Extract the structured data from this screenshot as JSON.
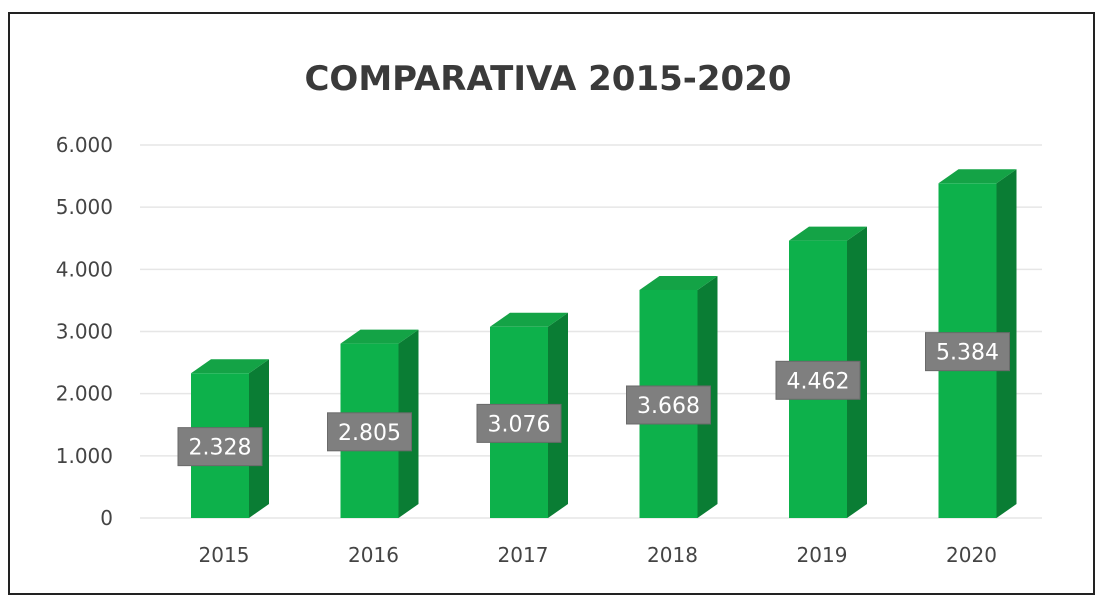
{
  "chart_data": {
    "type": "bar",
    "title": "COMPARATIVA 2015-2020",
    "categories": [
      "2015",
      "2016",
      "2017",
      "2018",
      "2019",
      "2020"
    ],
    "values": [
      2328,
      2805,
      3076,
      3668,
      4462,
      5384
    ],
    "data_labels": [
      "2.328",
      "2.805",
      "3.076",
      "3.668",
      "4.462",
      "5.384"
    ],
    "y_ticks": [
      0,
      1000,
      2000,
      3000,
      4000,
      5000,
      6000
    ],
    "y_tick_labels": [
      "0",
      "1.000",
      "2.000",
      "3.000",
      "4.000",
      "5.000",
      "6.000"
    ],
    "ylim": [
      0,
      6000
    ],
    "xlabel": "",
    "ylabel": "",
    "grid": true,
    "legend": "none",
    "style": "3d-column",
    "colors": {
      "bar_front": "#0db14b",
      "bar_side": "#0a7d34",
      "bar_top": "#14a346",
      "label_bg": "#7f7f7f",
      "label_text": "#ffffff",
      "grid": "#e6e6e6"
    }
  }
}
